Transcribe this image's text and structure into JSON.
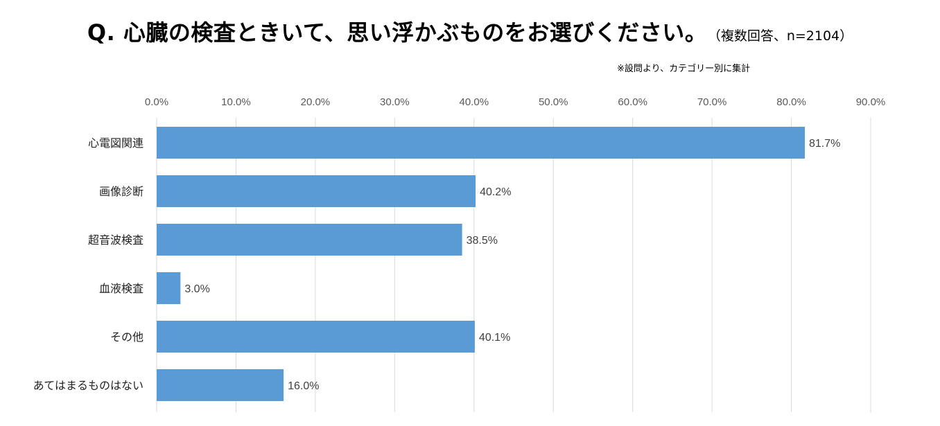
{
  "chart_data": {
    "type": "bar",
    "orientation": "horizontal",
    "title": "Q.  心臓の検査ときいて、思い浮かぶものをお選びください。",
    "subtitle": "（複数回答、n=2104）",
    "note": "※設問より、カテゴリー別に集計",
    "categories": [
      "心電図関連",
      "画像診断",
      "超音波検査",
      "血液検査",
      "その他",
      "あてはまるものはない"
    ],
    "values": [
      81.7,
      40.2,
      38.5,
      3.0,
      40.1,
      16.0
    ],
    "value_labels": [
      "81.7%",
      "40.2%",
      "38.5%",
      "3.0%",
      "40.1%",
      "16.0%"
    ],
    "xlim": [
      0,
      90
    ],
    "ticks": [
      0,
      10,
      20,
      30,
      40,
      50,
      60,
      70,
      80,
      90
    ],
    "tick_labels": [
      "0.0%",
      "10.0%",
      "20.0%",
      "30.0%",
      "40.0%",
      "50.0%",
      "60.0%",
      "70.0%",
      "80.0%",
      "90.0%"
    ],
    "axis_position": "top",
    "grid": true,
    "bar_color": "#5b9bd5",
    "grid_color": "#d9d9d9"
  }
}
